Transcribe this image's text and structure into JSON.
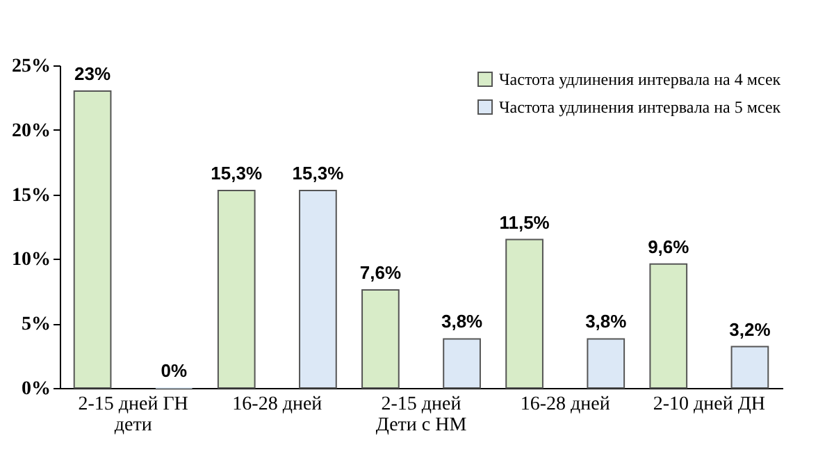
{
  "chart_data": {
    "type": "bar",
    "categories": [
      "2-15 дней ГН\nдети",
      "16-28 дней",
      "2-15 дней\nДети с НМ",
      "16-28 дней",
      "2-10 дней ДН"
    ],
    "series": [
      {
        "name": "Частота удлинения интервала на 4 мсек",
        "color": "#d8ecc8",
        "values": [
          23,
          15.3,
          7.6,
          11.5,
          9.6
        ],
        "value_labels": [
          "23%",
          "15,3%",
          "7,6%",
          "11,5%",
          "9,6%"
        ]
      },
      {
        "name": "Частота удлинения интервала на 5 мсек",
        "color": "#dce8f6",
        "values": [
          0,
          15.3,
          3.8,
          3.8,
          3.2
        ],
        "value_labels": [
          "0%",
          "15,3%",
          "3,8%",
          "3,8%",
          "3,2%"
        ]
      }
    ],
    "ylim": [
      0,
      25
    ],
    "yticks": [
      {
        "value": 0,
        "label": "0%"
      },
      {
        "value": 5,
        "label": "5%"
      },
      {
        "value": 10,
        "label": "10%"
      },
      {
        "value": 15,
        "label": "15%"
      },
      {
        "value": 20,
        "label": "20%"
      },
      {
        "value": 25,
        "label": "25%"
      }
    ],
    "grid": false,
    "legend": "top right"
  }
}
